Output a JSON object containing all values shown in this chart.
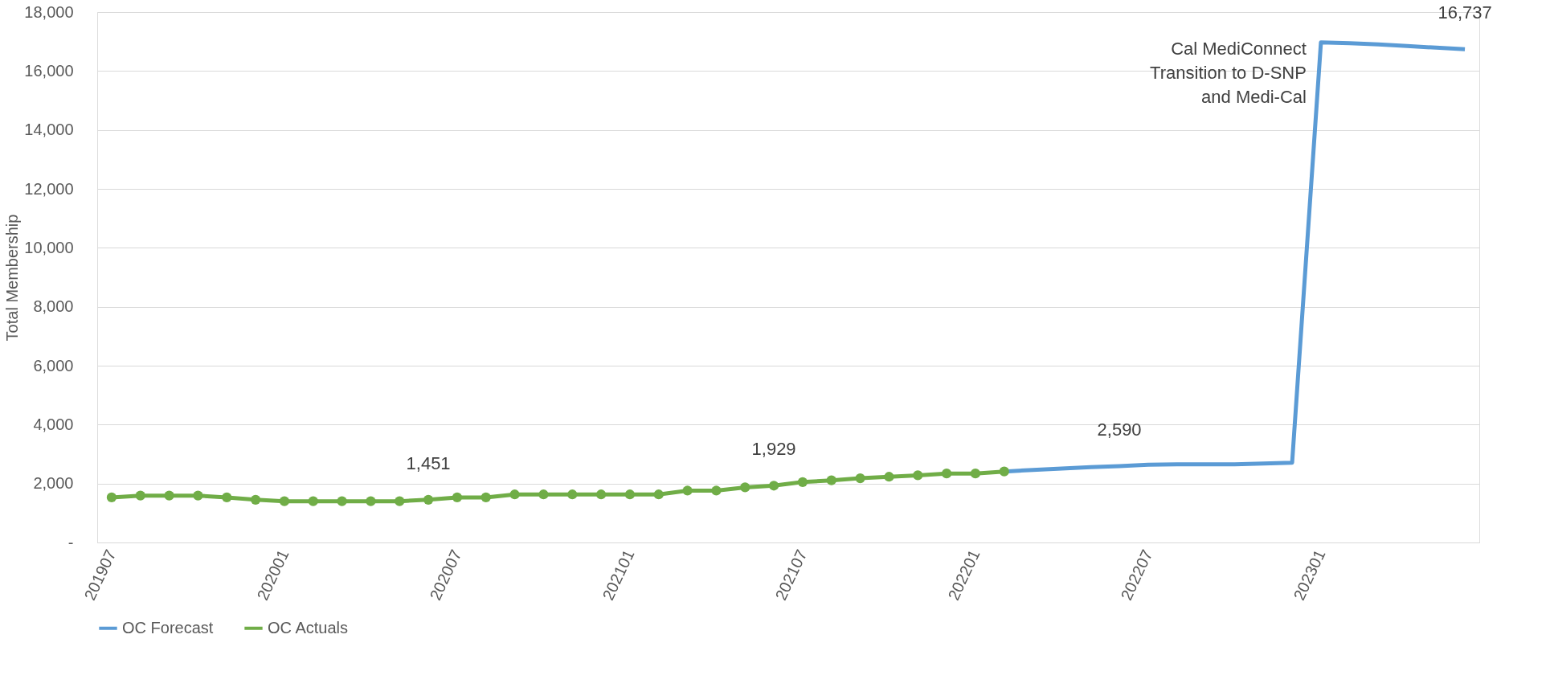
{
  "chart_data": {
    "type": "line",
    "ylabel": "Total Membership",
    "categories": [
      "201907",
      null,
      null,
      null,
      null,
      null,
      "202001",
      null,
      null,
      null,
      null,
      null,
      "202007",
      null,
      null,
      null,
      null,
      null,
      "202101",
      null,
      null,
      null,
      null,
      null,
      "202107",
      null,
      null,
      null,
      null,
      null,
      "202201",
      null,
      null,
      null,
      null,
      null,
      "202207",
      null,
      null,
      null,
      null,
      null,
      "202301",
      null,
      null,
      null,
      null,
      null
    ],
    "series": [
      {
        "name": "OC Forecast",
        "color": "#5b9bd5",
        "marker": "none",
        "values": [
          null,
          null,
          null,
          null,
          null,
          null,
          null,
          null,
          null,
          null,
          null,
          null,
          null,
          null,
          null,
          null,
          null,
          null,
          null,
          null,
          null,
          null,
          null,
          null,
          null,
          null,
          null,
          null,
          null,
          null,
          null,
          2410,
          2460,
          2510,
          2560,
          2590,
          2640,
          2650,
          2650,
          2650,
          2680,
          2710,
          16970,
          16945,
          16900,
          16850,
          16790,
          16737
        ],
        "value_labels": [
          null,
          null,
          null,
          null,
          null,
          null,
          null,
          null,
          null,
          null,
          null,
          null,
          null,
          null,
          null,
          null,
          null,
          null,
          null,
          null,
          null,
          null,
          null,
          null,
          null,
          null,
          null,
          null,
          null,
          null,
          null,
          null,
          null,
          null,
          null,
          "2,590",
          null,
          null,
          null,
          null,
          null,
          null,
          null,
          null,
          null,
          null,
          null,
          "16,737"
        ]
      },
      {
        "name": "OC Actuals",
        "color": "#70ad47",
        "marker": "circle",
        "values": [
          1530,
          1590,
          1590,
          1590,
          1530,
          1450,
          1400,
          1400,
          1400,
          1400,
          1400,
          1451,
          1530,
          1530,
          1630,
          1630,
          1630,
          1630,
          1630,
          1630,
          1760,
          1760,
          1870,
          1929,
          2050,
          2110,
          2180,
          2230,
          2280,
          2340,
          2340,
          2410,
          null,
          null,
          null,
          null,
          null,
          null,
          null,
          null,
          null,
          null,
          null,
          null,
          null,
          null,
          null,
          null
        ],
        "value_labels": [
          null,
          null,
          null,
          null,
          null,
          null,
          null,
          null,
          null,
          null,
          null,
          "1,451",
          null,
          null,
          null,
          null,
          null,
          null,
          null,
          null,
          null,
          null,
          null,
          "1,929",
          null,
          null,
          null,
          null,
          null,
          null,
          null,
          null,
          null,
          null,
          null,
          null,
          null,
          null,
          null,
          null,
          null,
          null,
          null,
          null,
          null,
          null,
          null,
          null
        ]
      }
    ],
    "ylim": [
      0,
      18000
    ],
    "yticks": [
      {
        "value": 0,
        "label": "-"
      },
      {
        "value": 2000,
        "label": "2,000"
      },
      {
        "value": 4000,
        "label": "4,000"
      },
      {
        "value": 6000,
        "label": "6,000"
      },
      {
        "value": 8000,
        "label": "8,000"
      },
      {
        "value": 10000,
        "label": "10,000"
      },
      {
        "value": 12000,
        "label": "12,000"
      },
      {
        "value": 14000,
        "label": "14,000"
      },
      {
        "value": 16000,
        "label": "16,000"
      },
      {
        "value": 18000,
        "label": "18,000"
      }
    ],
    "annotations": [
      {
        "text": "Cal MediConnect Transition to D-SNP and Medi-Cal",
        "x": "202301",
        "y": 16970
      }
    ],
    "grid": "y",
    "legend": "bottom"
  }
}
